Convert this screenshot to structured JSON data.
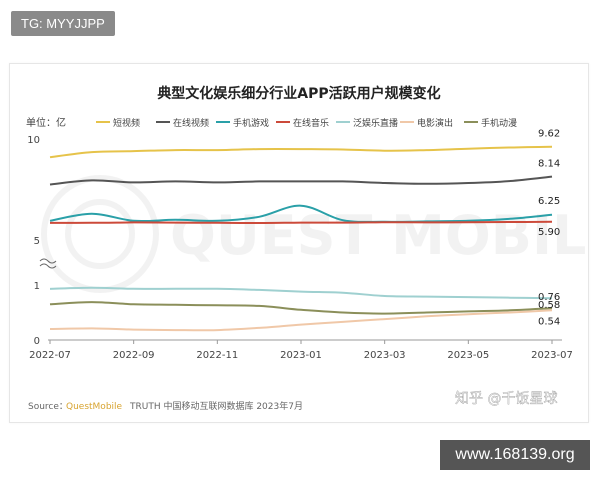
{
  "badge": {
    "text": "TG: MYYJJPP"
  },
  "site": {
    "text": "www.168139.org"
  },
  "watermark": {
    "text": "知乎 @千饭星球",
    "logo_text": "QUEST MOBILE"
  },
  "source": {
    "prefix": "Source：",
    "brand": "QuestMobile",
    "rest": "TRUTH 中国移动互联网数据库 2023年7月"
  },
  "colors": {
    "accent_brand": "#d8a431",
    "short_video": "#e6c34a",
    "online_video": "#555555",
    "mobile_games": "#2aa0a8",
    "online_music": "#cc4a3a",
    "pan_ent_live": "#9fd0d0",
    "movie_shows": "#f0c8a8",
    "mobile_anime": "#8b8f5a"
  },
  "chart_data": {
    "type": "line",
    "title": "典型文化娱乐细分行业APP活跃用户规模变化",
    "unit_label": "单位：亿",
    "x_ticks": [
      "2022-07",
      "2022-09",
      "2022-11",
      "2023-01",
      "2023-03",
      "2023-05",
      "2023-07"
    ],
    "x": [
      "2022-07",
      "2022-08",
      "2022-09",
      "2022-10",
      "2022-11",
      "2022-12",
      "2023-01",
      "2023-02",
      "2023-03",
      "2023-04",
      "2023-05",
      "2023-06",
      "2023-07"
    ],
    "y_ticks": [
      "0",
      "1",
      "5",
      "10"
    ],
    "axis_break": true,
    "grid": false,
    "legend_position": "top",
    "series": [
      {
        "name": "短视频",
        "color_key": "short_video",
        "values": [
          9.1,
          9.35,
          9.4,
          9.45,
          9.45,
          9.5,
          9.5,
          9.48,
          9.42,
          9.45,
          9.52,
          9.58,
          9.62
        ],
        "end_label": "9.62"
      },
      {
        "name": "在线视频",
        "color_key": "online_video",
        "values": [
          7.75,
          7.95,
          7.85,
          7.9,
          7.85,
          7.9,
          7.9,
          7.9,
          7.82,
          7.78,
          7.82,
          7.92,
          8.14
        ],
        "end_label": "8.14"
      },
      {
        "name": "手机游戏",
        "color_key": "mobile_games",
        "values": [
          5.95,
          6.3,
          5.95,
          6.0,
          5.95,
          6.15,
          6.7,
          5.98,
          5.9,
          5.92,
          5.95,
          6.05,
          6.25
        ],
        "end_label": "6.25"
      },
      {
        "name": "在线音乐",
        "color_key": "online_music",
        "values": [
          5.85,
          5.85,
          5.87,
          5.86,
          5.85,
          5.84,
          5.86,
          5.86,
          5.88,
          5.87,
          5.88,
          5.89,
          5.9
        ],
        "end_label": "5.90"
      },
      {
        "name": "泛娱乐直播",
        "color_key": "pan_ent_live",
        "values": [
          0.93,
          0.95,
          0.93,
          0.93,
          0.93,
          0.91,
          0.88,
          0.86,
          0.8,
          0.79,
          0.78,
          0.77,
          0.76
        ],
        "end_label": "0.76"
      },
      {
        "name": "电影演出",
        "color_key": "movie_shows",
        "values": [
          0.2,
          0.21,
          0.19,
          0.18,
          0.18,
          0.22,
          0.28,
          0.33,
          0.38,
          0.43,
          0.47,
          0.5,
          0.54
        ],
        "end_label": "0.54"
      },
      {
        "name": "手机动漫",
        "color_key": "mobile_anime",
        "values": [
          0.65,
          0.69,
          0.65,
          0.64,
          0.63,
          0.62,
          0.55,
          0.5,
          0.48,
          0.5,
          0.52,
          0.54,
          0.58
        ],
        "end_label": "0.58"
      }
    ]
  }
}
